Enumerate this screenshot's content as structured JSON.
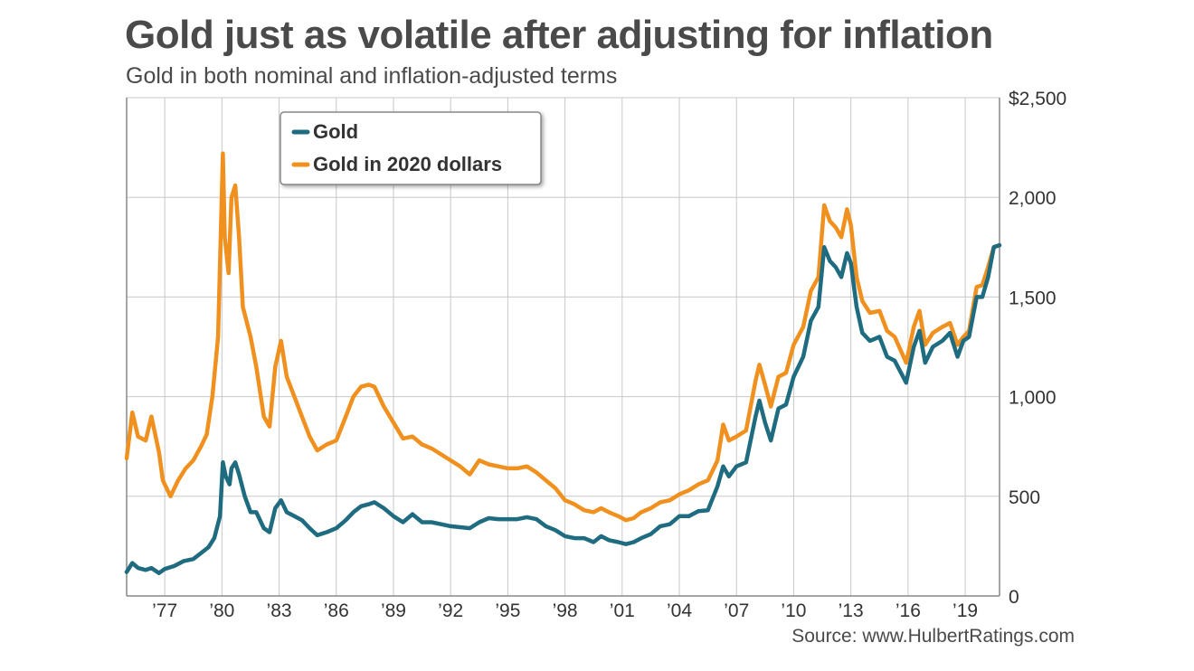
{
  "header": {
    "title": "Gold just as volatile after adjusting for inflation",
    "subtitle": "Gold in both nominal and inflation-adjusted terms"
  },
  "footer": {
    "source": "Source: www.HulbertRatings.com"
  },
  "colors": {
    "nominal": "#1f6b80",
    "real": "#f0901e",
    "grid": "#c8c8c8",
    "axis": "#888888"
  },
  "chart_data": {
    "type": "line",
    "title": "Gold just as volatile after adjusting for inflation",
    "subtitle": "Gold in both nominal and inflation-adjusted terms",
    "xlabel": "",
    "ylabel": "",
    "xlim": [
      1975.0,
      2020.8
    ],
    "ylim": [
      0,
      2500
    ],
    "y_ticks": [
      {
        "value": 2500,
        "label": "$2,500"
      },
      {
        "value": 2000,
        "label": "2,000"
      },
      {
        "value": 1500,
        "label": "1,500"
      },
      {
        "value": 1000,
        "label": "1,000"
      },
      {
        "value": 500,
        "label": "500"
      },
      {
        "value": 0,
        "label": "0"
      }
    ],
    "x_ticks": [
      {
        "value": 1977,
        "label": "’77"
      },
      {
        "value": 1980,
        "label": "’80"
      },
      {
        "value": 1983,
        "label": "’83"
      },
      {
        "value": 1986,
        "label": "’86"
      },
      {
        "value": 1989,
        "label": "’89"
      },
      {
        "value": 1992,
        "label": "’92"
      },
      {
        "value": 1995,
        "label": "’95"
      },
      {
        "value": 1998,
        "label": "’98"
      },
      {
        "value": 2001,
        "label": "’01"
      },
      {
        "value": 2004,
        "label": "’04"
      },
      {
        "value": 2007,
        "label": "’07"
      },
      {
        "value": 2010,
        "label": "’10"
      },
      {
        "value": 2013,
        "label": "’13"
      },
      {
        "value": 2016,
        "label": "’16"
      },
      {
        "value": 2019,
        "label": "’19"
      }
    ],
    "grid": true,
    "legend": {
      "position": "top-left",
      "entries": [
        "Gold",
        "Gold in 2020 dollars"
      ]
    },
    "series": [
      {
        "name": "Gold",
        "color": "#1f6b80",
        "points": [
          [
            1975.0,
            120
          ],
          [
            1975.3,
            165
          ],
          [
            1975.6,
            140
          ],
          [
            1976.0,
            130
          ],
          [
            1976.3,
            140
          ],
          [
            1976.7,
            115
          ],
          [
            1977.0,
            135
          ],
          [
            1977.5,
            150
          ],
          [
            1978.0,
            175
          ],
          [
            1978.5,
            185
          ],
          [
            1978.9,
            215
          ],
          [
            1979.3,
            245
          ],
          [
            1979.6,
            290
          ],
          [
            1979.9,
            400
          ],
          [
            1980.05,
            670
          ],
          [
            1980.2,
            600
          ],
          [
            1980.4,
            560
          ],
          [
            1980.5,
            640
          ],
          [
            1980.7,
            670
          ],
          [
            1980.9,
            610
          ],
          [
            1981.2,
            500
          ],
          [
            1981.5,
            420
          ],
          [
            1981.8,
            420
          ],
          [
            1982.2,
            340
          ],
          [
            1982.5,
            320
          ],
          [
            1982.8,
            440
          ],
          [
            1983.1,
            480
          ],
          [
            1983.4,
            420
          ],
          [
            1983.8,
            400
          ],
          [
            1984.2,
            380
          ],
          [
            1984.6,
            340
          ],
          [
            1985.0,
            305
          ],
          [
            1985.5,
            320
          ],
          [
            1986.0,
            340
          ],
          [
            1986.5,
            380
          ],
          [
            1986.9,
            420
          ],
          [
            1987.3,
            450
          ],
          [
            1987.7,
            460
          ],
          [
            1988.0,
            470
          ],
          [
            1988.5,
            440
          ],
          [
            1989.0,
            400
          ],
          [
            1989.5,
            370
          ],
          [
            1990.0,
            410
          ],
          [
            1990.5,
            370
          ],
          [
            1991.0,
            370
          ],
          [
            1991.5,
            360
          ],
          [
            1992.0,
            350
          ],
          [
            1992.5,
            345
          ],
          [
            1993.0,
            340
          ],
          [
            1993.5,
            370
          ],
          [
            1994.0,
            390
          ],
          [
            1994.5,
            385
          ],
          [
            1995.0,
            385
          ],
          [
            1995.5,
            385
          ],
          [
            1996.0,
            395
          ],
          [
            1996.5,
            385
          ],
          [
            1997.0,
            350
          ],
          [
            1997.5,
            330
          ],
          [
            1998.0,
            300
          ],
          [
            1998.5,
            290
          ],
          [
            1999.0,
            290
          ],
          [
            1999.5,
            270
          ],
          [
            1999.9,
            300
          ],
          [
            2000.3,
            280
          ],
          [
            2000.8,
            270
          ],
          [
            2001.2,
            260
          ],
          [
            2001.6,
            270
          ],
          [
            2002.0,
            290
          ],
          [
            2002.5,
            310
          ],
          [
            2003.0,
            350
          ],
          [
            2003.5,
            360
          ],
          [
            2004.0,
            400
          ],
          [
            2004.5,
            400
          ],
          [
            2005.0,
            425
          ],
          [
            2005.5,
            430
          ],
          [
            2006.0,
            550
          ],
          [
            2006.3,
            650
          ],
          [
            2006.6,
            600
          ],
          [
            2007.0,
            650
          ],
          [
            2007.5,
            670
          ],
          [
            2008.0,
            900
          ],
          [
            2008.2,
            980
          ],
          [
            2008.5,
            870
          ],
          [
            2008.8,
            780
          ],
          [
            2009.2,
            940
          ],
          [
            2009.6,
            960
          ],
          [
            2010.0,
            1100
          ],
          [
            2010.5,
            1200
          ],
          [
            2010.9,
            1380
          ],
          [
            2011.3,
            1450
          ],
          [
            2011.6,
            1750
          ],
          [
            2011.9,
            1680
          ],
          [
            2012.2,
            1650
          ],
          [
            2012.5,
            1600
          ],
          [
            2012.8,
            1720
          ],
          [
            2013.0,
            1670
          ],
          [
            2013.3,
            1450
          ],
          [
            2013.6,
            1320
          ],
          [
            2014.0,
            1280
          ],
          [
            2014.5,
            1300
          ],
          [
            2014.9,
            1200
          ],
          [
            2015.3,
            1180
          ],
          [
            2015.9,
            1070
          ],
          [
            2016.3,
            1250
          ],
          [
            2016.6,
            1330
          ],
          [
            2016.9,
            1170
          ],
          [
            2017.3,
            1250
          ],
          [
            2017.8,
            1280
          ],
          [
            2018.2,
            1320
          ],
          [
            2018.6,
            1200
          ],
          [
            2018.9,
            1280
          ],
          [
            2019.2,
            1300
          ],
          [
            2019.6,
            1500
          ],
          [
            2019.9,
            1500
          ],
          [
            2020.2,
            1600
          ],
          [
            2020.5,
            1750
          ],
          [
            2020.8,
            1760
          ]
        ]
      },
      {
        "name": "Gold in 2020 dollars",
        "color": "#f0901e",
        "points": [
          [
            1975.0,
            690
          ],
          [
            1975.3,
            920
          ],
          [
            1975.6,
            800
          ],
          [
            1976.0,
            780
          ],
          [
            1976.3,
            900
          ],
          [
            1976.7,
            720
          ],
          [
            1976.9,
            580
          ],
          [
            1977.3,
            500
          ],
          [
            1977.7,
            580
          ],
          [
            1978.1,
            640
          ],
          [
            1978.5,
            680
          ],
          [
            1978.9,
            750
          ],
          [
            1979.2,
            810
          ],
          [
            1979.5,
            1000
          ],
          [
            1979.8,
            1300
          ],
          [
            1980.05,
            2220
          ],
          [
            1980.15,
            1800
          ],
          [
            1980.35,
            1620
          ],
          [
            1980.5,
            2000
          ],
          [
            1980.7,
            2060
          ],
          [
            1980.9,
            1800
          ],
          [
            1981.1,
            1450
          ],
          [
            1981.5,
            1300
          ],
          [
            1981.8,
            1150
          ],
          [
            1982.2,
            900
          ],
          [
            1982.5,
            850
          ],
          [
            1982.8,
            1150
          ],
          [
            1983.1,
            1280
          ],
          [
            1983.4,
            1100
          ],
          [
            1983.8,
            1000
          ],
          [
            1984.2,
            900
          ],
          [
            1984.6,
            800
          ],
          [
            1985.0,
            730
          ],
          [
            1985.5,
            760
          ],
          [
            1986.0,
            780
          ],
          [
            1986.5,
            900
          ],
          [
            1986.9,
            1000
          ],
          [
            1987.3,
            1050
          ],
          [
            1987.7,
            1060
          ],
          [
            1988.0,
            1050
          ],
          [
            1988.5,
            950
          ],
          [
            1989.0,
            870
          ],
          [
            1989.5,
            790
          ],
          [
            1990.0,
            800
          ],
          [
            1990.5,
            760
          ],
          [
            1991.0,
            740
          ],
          [
            1991.5,
            710
          ],
          [
            1992.0,
            680
          ],
          [
            1992.5,
            650
          ],
          [
            1993.0,
            610
          ],
          [
            1993.5,
            680
          ],
          [
            1994.0,
            660
          ],
          [
            1994.5,
            650
          ],
          [
            1995.0,
            640
          ],
          [
            1995.5,
            640
          ],
          [
            1996.0,
            650
          ],
          [
            1996.5,
            620
          ],
          [
            1997.0,
            580
          ],
          [
            1997.5,
            540
          ],
          [
            1998.0,
            480
          ],
          [
            1998.5,
            460
          ],
          [
            1999.0,
            430
          ],
          [
            1999.5,
            420
          ],
          [
            1999.9,
            440
          ],
          [
            2000.3,
            420
          ],
          [
            2000.8,
            400
          ],
          [
            2001.2,
            380
          ],
          [
            2001.6,
            390
          ],
          [
            2002.0,
            420
          ],
          [
            2002.5,
            440
          ],
          [
            2003.0,
            470
          ],
          [
            2003.5,
            480
          ],
          [
            2004.0,
            510
          ],
          [
            2004.5,
            530
          ],
          [
            2005.0,
            560
          ],
          [
            2005.5,
            580
          ],
          [
            2006.0,
            680
          ],
          [
            2006.3,
            860
          ],
          [
            2006.6,
            780
          ],
          [
            2007.0,
            800
          ],
          [
            2007.5,
            830
          ],
          [
            2008.0,
            1080
          ],
          [
            2008.2,
            1160
          ],
          [
            2008.5,
            1060
          ],
          [
            2008.8,
            950
          ],
          [
            2009.2,
            1100
          ],
          [
            2009.6,
            1120
          ],
          [
            2010.0,
            1260
          ],
          [
            2010.5,
            1350
          ],
          [
            2010.9,
            1530
          ],
          [
            2011.3,
            1600
          ],
          [
            2011.6,
            1960
          ],
          [
            2011.9,
            1880
          ],
          [
            2012.2,
            1850
          ],
          [
            2012.5,
            1800
          ],
          [
            2012.8,
            1940
          ],
          [
            2013.0,
            1860
          ],
          [
            2013.3,
            1600
          ],
          [
            2013.6,
            1480
          ],
          [
            2014.0,
            1420
          ],
          [
            2014.5,
            1430
          ],
          [
            2014.9,
            1330
          ],
          [
            2015.3,
            1300
          ],
          [
            2015.9,
            1170
          ],
          [
            2016.3,
            1350
          ],
          [
            2016.6,
            1430
          ],
          [
            2016.9,
            1260
          ],
          [
            2017.3,
            1320
          ],
          [
            2017.8,
            1350
          ],
          [
            2018.2,
            1370
          ],
          [
            2018.6,
            1260
          ],
          [
            2018.9,
            1300
          ],
          [
            2019.2,
            1330
          ],
          [
            2019.6,
            1550
          ],
          [
            2019.9,
            1560
          ],
          [
            2020.2,
            1650
          ],
          [
            2020.5,
            1750
          ],
          [
            2020.8,
            1760
          ]
        ]
      }
    ]
  }
}
